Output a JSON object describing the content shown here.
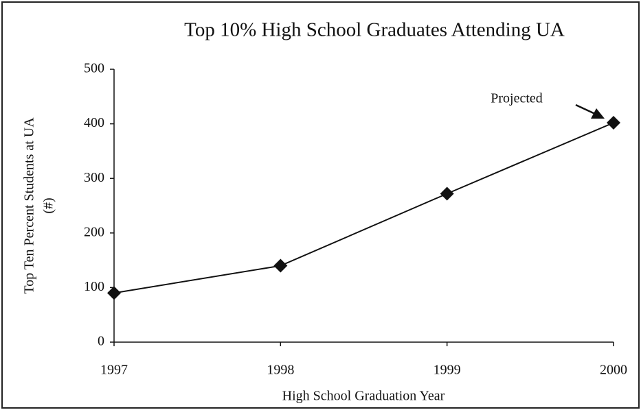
{
  "chart_data": {
    "type": "line",
    "title": "Top 10% High School Graduates Attending UA",
    "xlabel": "High School Graduation Year",
    "ylabel_lines": [
      "Top Ten Percent Students at UA",
      "(#)"
    ],
    "x": [
      1997,
      1998,
      1999,
      2000
    ],
    "xlim": [
      1997,
      2000
    ],
    "xticks": [
      1997,
      1998,
      1999,
      2000
    ],
    "series": [
      {
        "name": "Top Ten Percent Students at UA",
        "color": "#111111",
        "values": [
          90,
          140,
          272,
          402
        ]
      }
    ],
    "ylim": [
      0,
      500
    ],
    "yticks": [
      0,
      100,
      200,
      300,
      400,
      500
    ],
    "annotation": "Projected",
    "grid": false
  }
}
